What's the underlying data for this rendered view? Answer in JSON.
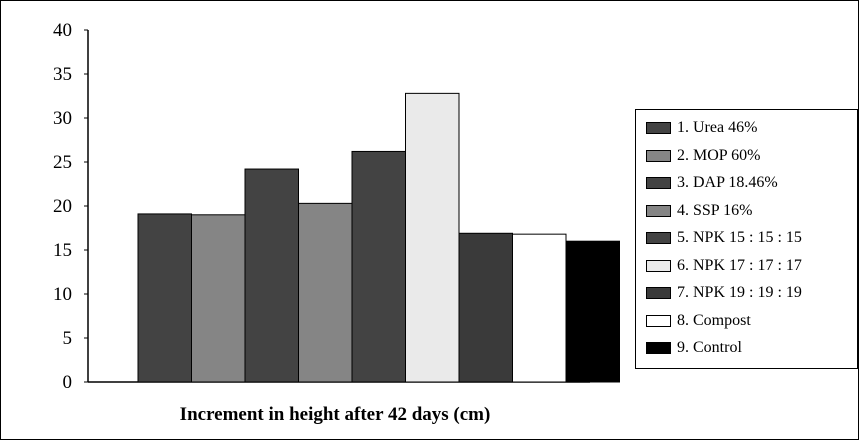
{
  "chart_data": {
    "type": "bar",
    "categories": [
      "1. Urea 46%",
      "2. MOP 60%",
      "3. DAP 18.46%",
      "4. SSP 16%",
      "5. NPK 15 : 15 : 15",
      "6. NPK 17 : 17 : 17",
      "7. NPK 19 : 19 : 19",
      "8. Compost",
      "9. Control"
    ],
    "values": [
      19.1,
      19.0,
      24.2,
      20.3,
      26.2,
      32.8,
      16.9,
      16.8,
      16.0
    ],
    "colors": [
      "#434343",
      "#858585",
      "#434343",
      "#858585",
      "#434343",
      "#eaeaea",
      "#3a3a3a",
      "#ffffff",
      "#000000"
    ],
    "xlabel": "Increment in height after 42 days (cm)",
    "ylabel": "",
    "ylim": [
      0,
      40
    ],
    "yticks": [
      "0",
      "5",
      "10",
      "15",
      "20",
      "25",
      "30",
      "35",
      "40"
    ],
    "grid": false,
    "legend_position": "right"
  }
}
